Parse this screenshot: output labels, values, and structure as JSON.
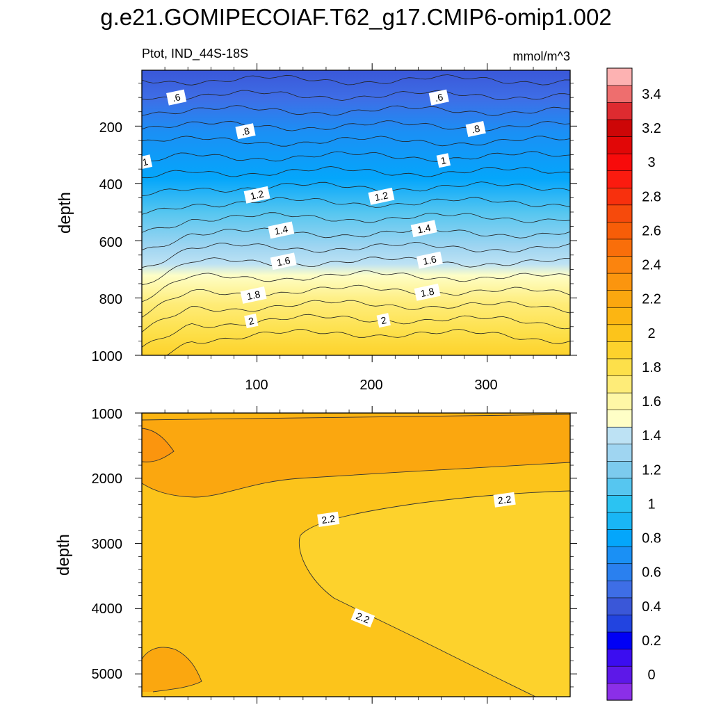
{
  "figure_title": "g.e21.GOMIPECOIAF.T62_g17.CMIP6-omip1.002",
  "colorbar": {
    "colors": [
      "#8b2fe8",
      "#5d18e8",
      "#3b0df0",
      "#0000f5",
      "#2244e0",
      "#3a57d8",
      "#3e6ee6",
      "#2a80ef",
      "#1a90f5",
      "#04a6fb",
      "#19b6f5",
      "#2bc3f2",
      "#56c6f0",
      "#7ccbee",
      "#9fd5f1",
      "#bde2f4",
      "#fefec6",
      "#fef7a6",
      "#feec78",
      "#fde04a",
      "#fdd22c",
      "#fcc41b",
      "#fcb512",
      "#fba70f",
      "#fb950e",
      "#fb840e",
      "#f96e0a",
      "#f75d08",
      "#f64a0c",
      "#f8300d",
      "#fb1b0f",
      "#f80b0b",
      "#e10707",
      "#cd0607",
      "#de2b30",
      "#ee6e6e",
      "#fdb2b2"
    ],
    "labels": [
      "0",
      "0.2",
      "0.4",
      "0.6",
      "0.8",
      "1",
      "1.2",
      "1.4",
      "1.6",
      "1.8",
      "2",
      "2.2",
      "2.4",
      "2.6",
      "2.8",
      "3",
      "3.2",
      "3.4"
    ]
  },
  "chart_data": [
    {
      "type": "contour",
      "panel": "upper",
      "left_string": "Ptot, IND_44S-18S",
      "right_string": "mmol/m^3",
      "ylabel": "depth",
      "xlabel": "",
      "x_ticks": [
        "100",
        "200",
        "300"
      ],
      "y_ticks": [
        "200",
        "400",
        "600",
        "800",
        "1000"
      ],
      "xlim": [
        0,
        372
      ],
      "ylim": [
        1000,
        5
      ],
      "contour_levels": [
        0.5,
        0.6,
        0.7,
        0.8,
        0.9,
        1.0,
        1.1,
        1.2,
        1.3,
        1.4,
        1.5,
        1.6,
        1.7,
        1.8,
        1.9,
        2.0,
        2.1,
        2.2
      ],
      "contour_labels": [
        {
          "text": ".6",
          "x": 30,
          "y": 100
        },
        {
          "text": ".6",
          "x": 258,
          "y": 100
        },
        {
          "text": ".8",
          "x": 90,
          "y": 218
        },
        {
          "text": ".8",
          "x": 290,
          "y": 210
        },
        {
          "text": "1",
          "x": 3,
          "y": 325
        },
        {
          "text": "1",
          "x": 262,
          "y": 320
        },
        {
          "text": "1.2",
          "x": 100,
          "y": 440
        },
        {
          "text": "1.2",
          "x": 208,
          "y": 445
        },
        {
          "text": "1.4",
          "x": 121,
          "y": 563
        },
        {
          "text": "1.4",
          "x": 245,
          "y": 558
        },
        {
          "text": "1.6",
          "x": 123,
          "y": 672
        },
        {
          "text": "1.6",
          "x": 250,
          "y": 668
        },
        {
          "text": "1.8",
          "x": 97,
          "y": 790
        },
        {
          "text": "1.8",
          "x": 248,
          "y": 780
        },
        {
          "text": "2",
          "x": 95,
          "y": 880
        },
        {
          "text": "2",
          "x": 210,
          "y": 878
        }
      ]
    },
    {
      "type": "contour",
      "panel": "lower",
      "ylabel": "depth",
      "xlabel": "",
      "x_ticks": [
        "100",
        "200",
        "300"
      ],
      "y_ticks": [
        "1000",
        "2000",
        "3000",
        "4000",
        "5000"
      ],
      "xlim": [
        0,
        372
      ],
      "ylim": [
        5350,
        1000
      ],
      "contour_levels": [
        2.2,
        2.3,
        2.4
      ],
      "contour_labels": [
        {
          "text": "2.2",
          "x": 162,
          "y": 2630
        },
        {
          "text": "2.2",
          "x": 315,
          "y": 2330
        },
        {
          "text": "2.2",
          "x": 192,
          "y": 4140
        }
      ]
    }
  ]
}
